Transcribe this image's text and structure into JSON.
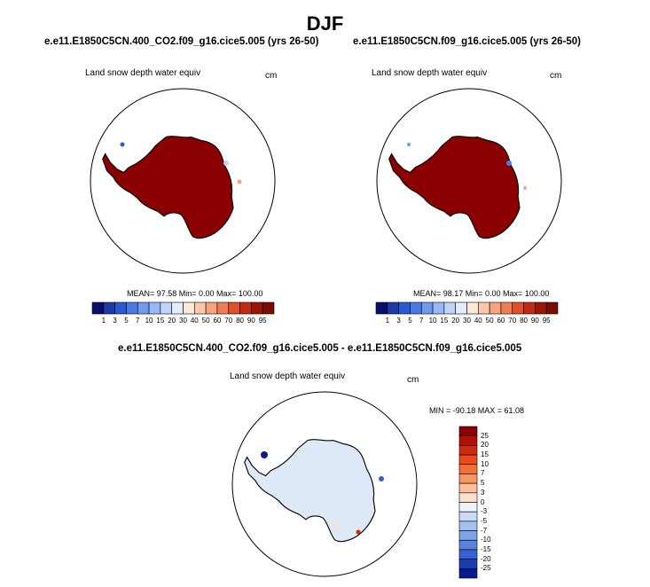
{
  "figure": {
    "season": "DJF",
    "colors": {
      "ocean_bg": "#ffffff",
      "ice_red": "#8b0000",
      "diff_base": "#dde9f7",
      "outline": "#000000"
    }
  },
  "chart_data": [
    {
      "type": "heatmap",
      "projection": "south-polar-stereographic",
      "title": "e.e11.E1850C5CN.400_CO2.f09_g16.cice5.005 (yrs 26-50)",
      "field": "Land snow depth water equiv",
      "units": "cm",
      "stats": {
        "mean": "97.58",
        "min": "0.00",
        "max": "100.00"
      },
      "stats_text": "MEAN=  97.58  Min=   0.00  Max= 100.00",
      "colorbar": {
        "orientation": "horizontal",
        "levels": [
          "1",
          "3",
          "5",
          "7",
          "10",
          "15",
          "20",
          "30",
          "40",
          "50",
          "60",
          "70",
          "80",
          "90",
          "95"
        ],
        "colors": [
          "#08106b",
          "#1a3aa8",
          "#2b58d3",
          "#4a7ae6",
          "#6e9aef",
          "#98b8f5",
          "#c0d4fa",
          "#e2ecfc",
          "#fde7d8",
          "#fbc9aa",
          "#f7a47c",
          "#f07c52",
          "#e04e2a",
          "#c22a14",
          "#9c1508",
          "#7c0a02"
        ]
      }
    },
    {
      "type": "heatmap",
      "projection": "south-polar-stereographic",
      "title": "e.e11.E1850C5CN.f09_g16.cice5.005 (yrs 26-50)",
      "field": "Land snow depth water equiv",
      "units": "cm",
      "stats": {
        "mean": "98.17",
        "min": "0.00",
        "max": "100.00"
      },
      "stats_text": "MEAN=  98.17  Min=   0.00  Max= 100.00",
      "colorbar": {
        "orientation": "horizontal",
        "levels": [
          "1",
          "3",
          "5",
          "7",
          "10",
          "15",
          "20",
          "30",
          "40",
          "50",
          "60",
          "70",
          "80",
          "90",
          "95"
        ],
        "colors": [
          "#08106b",
          "#1a3aa8",
          "#2b58d3",
          "#4a7ae6",
          "#6e9aef",
          "#98b8f5",
          "#c0d4fa",
          "#e2ecfc",
          "#fde7d8",
          "#fbc9aa",
          "#f7a47c",
          "#f07c52",
          "#e04e2a",
          "#c22a14",
          "#9c1508",
          "#7c0a02"
        ]
      }
    },
    {
      "type": "heatmap",
      "projection": "south-polar-stereographic",
      "title": "e.e11.E1850C5CN.400_CO2.f09_g16.cice5.005 - e.e11.E1850C5CN.f09_g16.cice5.005",
      "field": "Land snow depth water equiv",
      "units": "cm",
      "stats": {
        "min": "-90.18",
        "max": "61.08"
      },
      "stats_text": "MIN = -90.18 MAX =  61.08",
      "colorbar": {
        "orientation": "vertical",
        "levels": [
          "25",
          "20",
          "15",
          "10",
          "7",
          "5",
          "3",
          "0",
          "-3",
          "-5",
          "-7",
          "-10",
          "-15",
          "-20",
          "-25"
        ],
        "colors": [
          "#8b0000",
          "#b01000",
          "#d02a0a",
          "#e84a1a",
          "#f46e3a",
          "#f89860",
          "#fbc09a",
          "#fde0cc",
          "#ecf2fb",
          "#c8daf4",
          "#a4c0ee",
          "#7ea2e6",
          "#5a82dc",
          "#3660d0",
          "#1a3cb4",
          "#0a1a8c"
        ]
      }
    }
  ]
}
